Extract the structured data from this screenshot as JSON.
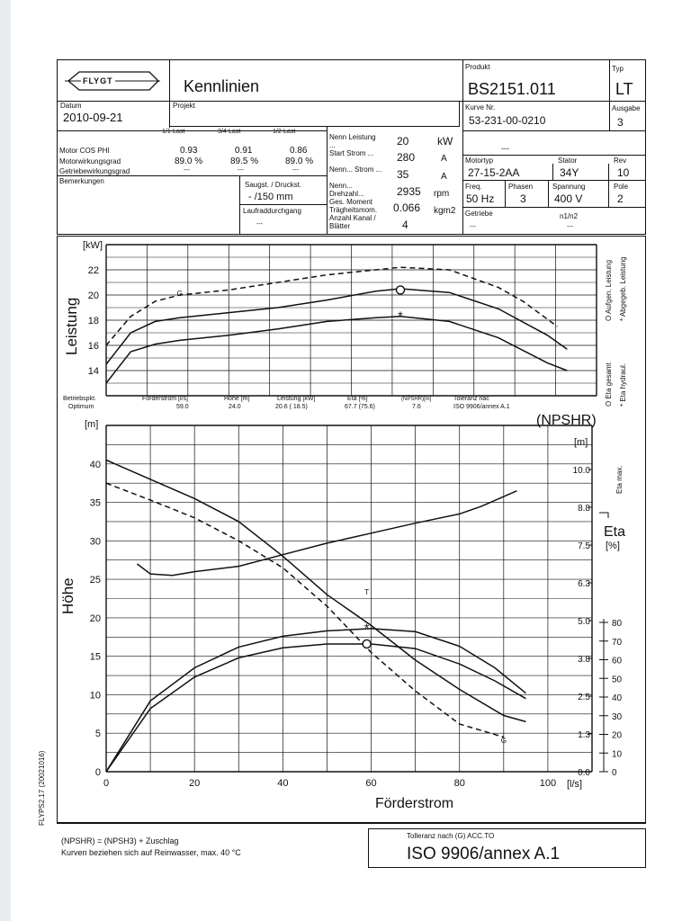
{
  "header": {
    "brand": "FLYGT",
    "doc_title": "Kennlinien",
    "produkt_label": "Produkt",
    "produkt_value": "BS2151.011",
    "typ_label": "Typ",
    "typ_value": "LT",
    "datum_label": "Datum",
    "datum_value": "2010-09-21",
    "projekt_label": "Projekt",
    "kurve_label": "Kurve Nr.",
    "kurve_value": "53-231-00-0210",
    "ausgabe_label": "Ausgabe",
    "ausgabe_value": "3"
  },
  "load_table": {
    "col_headers": [
      "1/1-Last",
      "3/4-Last",
      "1/2-Last"
    ],
    "rows": [
      {
        "label": "Motor COS PHI",
        "values": [
          "0.93",
          "0.91",
          "0.86"
        ]
      },
      {
        "label": "Motorwirkungsgrad",
        "values": [
          "89.0 %",
          "89.5 %",
          "89.0 %"
        ]
      },
      {
        "label": "Getriebewirkungsgrad",
        "values": [
          "---",
          "---",
          "---"
        ]
      }
    ],
    "bemerkungen_label": "Bemerkungen",
    "saugst_label": "Saugst. / Druckst.",
    "saugst_value": "- /150 mm",
    "laufrad_label": "Laufraddurchgang",
    "laufrad_value": "---"
  },
  "nenn_table": {
    "rows": [
      {
        "label": "Nenn Leistung ...",
        "value": "20",
        "unit": "kW"
      },
      {
        "label": "Start Strom ...",
        "value": "280",
        "unit": "A"
      },
      {
        "label": "Nenn... Strom ...",
        "value": "35",
        "unit": "A"
      },
      {
        "label": "Nenn... Drehzahl...",
        "value": "2935",
        "unit": "rpm"
      },
      {
        "label": "Ges. Moment Trägheitsmom.",
        "value": "0.066",
        "unit": "kgm2"
      },
      {
        "label": "Anzahl Kanal / Blätter",
        "value": "4",
        "unit": ""
      }
    ]
  },
  "motor_table": {
    "dash_value": "---",
    "motortyp_label": "Motortyp",
    "motortyp_value": "27-15-2AA",
    "stator_label": "Stator",
    "stator_value": "34Y",
    "rev_label": "Rev",
    "rev_value": "10",
    "freq_label": "Freq.",
    "freq_value": "50 Hz",
    "phasen_label": "Phasen",
    "phasen_value": "3",
    "spannung_label": "Spannung",
    "spannung_value": "400 V",
    "pole_label": "Pole",
    "pole_value": "2",
    "getriebe_label": "Getriebe",
    "getriebe_value": "---",
    "n1n2_label": "n1/n2",
    "n1n2_value": "---"
  },
  "duty_point": {
    "label1": "Betriebspkt.",
    "label2": "Optimum",
    "cols": [
      {
        "label": "Förderstrom [l/s]",
        "value": "59.0"
      },
      {
        "label": "Höhe [m]",
        "value": "24.0"
      },
      {
        "label": "Leistung [kW]",
        "value": "20.6   ( 18.5)"
      },
      {
        "label": "Eta [%]",
        "value": "67.7 (75.6)"
      },
      {
        "label": "(NPSHR)[m]",
        "value": "7.6"
      },
      {
        "label": "Toleranz nac",
        "value": "ISO 9906/annex A.1"
      }
    ]
  },
  "chart_data": [
    {
      "type": "line",
      "title": "",
      "ylabel": "Leistung",
      "yunit": "[kW]",
      "xlim": [
        0,
        100
      ],
      "ylim": [
        12,
        24
      ],
      "yticks": [
        14,
        16,
        18,
        20,
        22
      ],
      "grid": true,
      "legend_labels": [
        "O Aufgen. Leistung",
        "* Abgegeb. Leistung",
        "O Eta gesamt",
        "* Eta hydraul."
      ],
      "series": [
        {
          "name": "",
          "style": "dashed",
          "points": [
            [
              0,
              16.0
            ],
            [
              5,
              18.3
            ],
            [
              10,
              19.5
            ],
            [
              15,
              20.0
            ],
            [
              25,
              20.4
            ],
            [
              35,
              21.0
            ],
            [
              45,
              21.6
            ],
            [
              55,
              22.0
            ],
            [
              60,
              22.2
            ],
            [
              70,
              22.0
            ],
            [
              80,
              20.6
            ],
            [
              85,
              19.5
            ],
            [
              92,
              17.5
            ]
          ]
        },
        {
          "name": "",
          "style": "solid",
          "points": [
            [
              0,
              14.5
            ],
            [
              5,
              17.0
            ],
            [
              10,
              17.9
            ],
            [
              15,
              18.2
            ],
            [
              25,
              18.6
            ],
            [
              35,
              19.0
            ],
            [
              45,
              19.6
            ],
            [
              55,
              20.3
            ],
            [
              60,
              20.5
            ],
            [
              70,
              20.2
            ],
            [
              80,
              18.9
            ],
            [
              90,
              16.8
            ],
            [
              94,
              15.7
            ]
          ]
        },
        {
          "name": "",
          "style": "solid",
          "points": [
            [
              0,
              13.0
            ],
            [
              5,
              15.5
            ],
            [
              10,
              16.1
            ],
            [
              15,
              16.4
            ],
            [
              25,
              16.8
            ],
            [
              35,
              17.3
            ],
            [
              45,
              17.9
            ],
            [
              55,
              18.2
            ],
            [
              60,
              18.3
            ],
            [
              70,
              17.9
            ],
            [
              80,
              16.6
            ],
            [
              90,
              14.6
            ],
            [
              94,
              14.0
            ]
          ]
        }
      ],
      "markers": [
        {
          "symbol": "G",
          "x": 15,
          "y": 20.2
        },
        {
          "symbol": "O",
          "x": 60,
          "y": 20.4
        },
        {
          "symbol": "*",
          "x": 60,
          "y": 18.3
        }
      ]
    },
    {
      "type": "line",
      "title": "",
      "xlabel": "Förderstrom",
      "xunit": "[l/s]",
      "ylabel": "Höhe",
      "yunit": "[m]",
      "xlim": [
        0,
        110
      ],
      "ylim": [
        0,
        45
      ],
      "xticks": [
        0,
        20,
        40,
        60,
        80,
        100
      ],
      "yticks": [
        0,
        5,
        10,
        15,
        20,
        25,
        30,
        35,
        40
      ],
      "right_axis_npshr": {
        "label": "(NPSHR)",
        "unit": "[m]",
        "ticks": [
          "10.0",
          "8.8",
          "7.5",
          "6.3",
          "5.0",
          "3.8",
          "2.5",
          "1.3",
          "0.0"
        ]
      },
      "right_axis_eta": {
        "label": "Eta",
        "unit": "[%]",
        "ticks": [
          80,
          70,
          60,
          50,
          40,
          30,
          20,
          10,
          0
        ],
        "max_label": "Eta max."
      },
      "grid": true,
      "series": [
        {
          "name": "",
          "style": "solid",
          "points": [
            [
              0,
              40.5
            ],
            [
              10,
              38
            ],
            [
              20,
              35.5
            ],
            [
              30,
              32.5
            ],
            [
              40,
              28
            ],
            [
              50,
              23
            ],
            [
              60,
              19
            ],
            [
              70,
              14.5
            ],
            [
              80,
              10.7
            ],
            [
              90,
              7.3
            ],
            [
              95,
              6.5
            ]
          ]
        },
        {
          "name": "",
          "style": "dashed",
          "points": [
            [
              0,
              37.5
            ],
            [
              10,
              35.3
            ],
            [
              20,
              33
            ],
            [
              30,
              30
            ],
            [
              40,
              26.5
            ],
            [
              50,
              21.5
            ],
            [
              60,
              15.5
            ],
            [
              70,
              10.5
            ],
            [
              80,
              6.2
            ],
            [
              90,
              4.5
            ]
          ]
        },
        {
          "name": "",
          "style": "solid",
          "points": [
            [
              7,
              27.0
            ],
            [
              10,
              25.7
            ],
            [
              15,
              25.5
            ],
            [
              20,
              26
            ],
            [
              30,
              26.7
            ],
            [
              40,
              28.2
            ],
            [
              50,
              29.7
            ],
            [
              60,
              31
            ],
            [
              70,
              32.3
            ],
            [
              80,
              33.5
            ],
            [
              85,
              34.5
            ],
            [
              93,
              36.5
            ]
          ]
        },
        {
          "name": "",
          "style": "solid",
          "points": [
            [
              0,
              0
            ],
            [
              10,
              9.2
            ],
            [
              20,
              13.5
            ],
            [
              30,
              16.2
            ],
            [
              40,
              17.6
            ],
            [
              50,
              18.3
            ],
            [
              60,
              18.6
            ],
            [
              70,
              18.2
            ],
            [
              80,
              16.3
            ],
            [
              88,
              13.5
            ],
            [
              95,
              10.2
            ]
          ]
        },
        {
          "name": "",
          "style": "solid",
          "points": [
            [
              0,
              0
            ],
            [
              10,
              8.2
            ],
            [
              20,
              12.3
            ],
            [
              30,
              14.8
            ],
            [
              40,
              16.1
            ],
            [
              50,
              16.6
            ],
            [
              60,
              16.6
            ],
            [
              70,
              16.0
            ],
            [
              80,
              14.0
            ],
            [
              88,
              11.8
            ],
            [
              95,
              9.5
            ]
          ]
        }
      ],
      "markers": [
        {
          "symbol": "T",
          "x": 59,
          "y": 23.5
        },
        {
          "symbol": "*",
          "x": 59,
          "y": 18.6
        },
        {
          "symbol": "O",
          "x": 59,
          "y": 16.6
        },
        {
          "symbol": "G",
          "x": 90,
          "y": 4.2
        }
      ]
    }
  ],
  "footer": {
    "side_label": "FLYPS2.17 (20021016)",
    "npshr_note": "(NPSHR) = (NPSH3) + Zuschlag",
    "water_note": "Kurven beziehen sich auf Reinwasser, max. 40 °C",
    "tolerance_label": "Tolleranz nach (G) ACC.TO",
    "tolerance_value": "ISO 9906/annex A.1"
  }
}
